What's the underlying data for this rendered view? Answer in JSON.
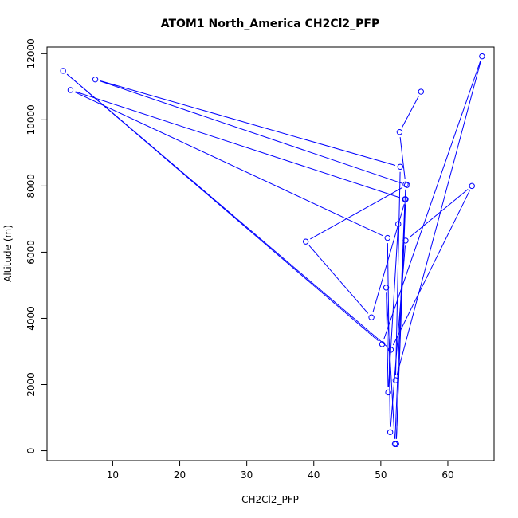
{
  "chart_data": {
    "type": "line",
    "title": "ATOM1 North_America CH2Cl2_PFP",
    "xlabel": "CH2Cl2_PFP",
    "ylabel": "Altitude (m)",
    "xlim": [
      0.2,
      66.9
    ],
    "ylim": [
      -300,
      12200
    ],
    "x_ticks": [
      10,
      20,
      30,
      40,
      50,
      60
    ],
    "y_ticks": [
      0,
      2000,
      4000,
      6000,
      8000,
      10000,
      12000
    ],
    "grid": false,
    "series": [
      {
        "color": "#0000ff",
        "marker": "open-circle",
        "points": [
          [
            52.6,
            6850
          ],
          [
            51.1,
            1760
          ],
          [
            50.8,
            4930
          ],
          [
            52.1,
            200
          ],
          [
            53.6,
            7600
          ],
          [
            3.7,
            10900
          ],
          [
            51.0,
            6430
          ],
          [
            51.4,
            560
          ],
          [
            53.7,
            6350
          ],
          [
            63.6,
            8000
          ],
          [
            51.5,
            3050
          ],
          [
            2.6,
            11480
          ],
          [
            50.2,
            3220
          ],
          [
            65.1,
            11920
          ],
          [
            52.2,
            2130
          ],
          [
            52.9,
            8580
          ],
          [
            7.4,
            11220
          ],
          [
            53.9,
            8030
          ],
          [
            38.8,
            6320
          ],
          [
            48.6,
            4030
          ],
          [
            53.7,
            7600
          ],
          [
            52.3,
            200
          ],
          [
            53.7,
            8050
          ],
          [
            52.8,
            9630
          ],
          [
            56.0,
            10850
          ]
        ]
      }
    ]
  }
}
